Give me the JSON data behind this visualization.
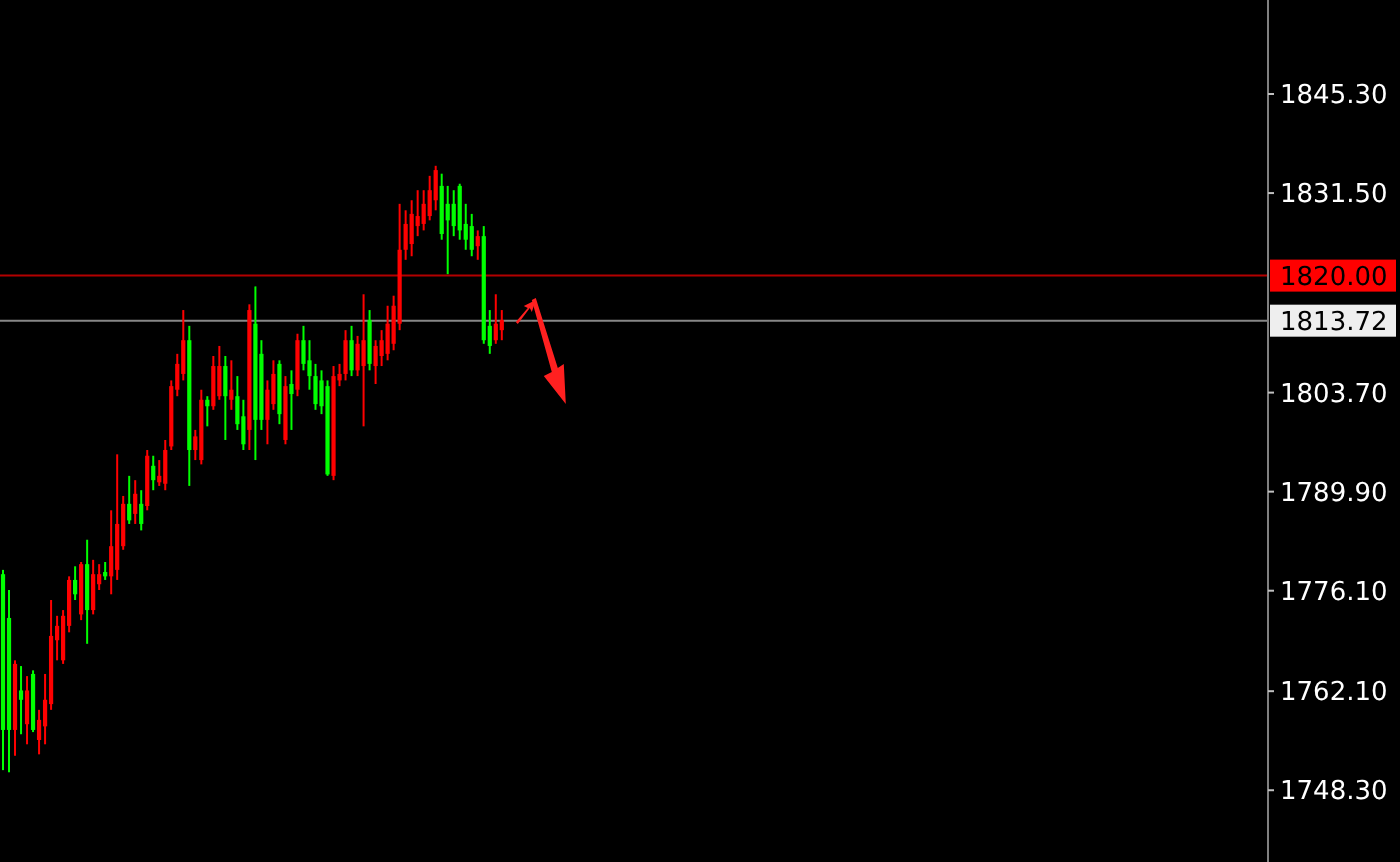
{
  "chart_data": {
    "type": "candlestick",
    "categories": [
      null,
      null,
      null,
      null,
      null,
      null,
      null,
      null,
      null,
      null,
      null,
      null,
      null,
      null,
      null,
      null,
      null,
      null,
      null,
      null,
      null,
      null,
      null,
      null,
      null,
      null,
      null,
      null,
      null,
      null,
      null,
      null,
      null,
      null,
      null,
      null,
      null,
      null,
      null,
      null,
      null,
      null,
      null,
      null,
      null,
      null,
      null,
      null,
      null,
      null,
      null,
      null,
      null,
      null,
      null,
      null,
      null,
      null,
      null,
      null,
      null,
      null,
      null,
      null,
      null,
      null,
      null,
      null,
      null,
      null,
      null,
      null,
      null,
      null,
      null,
      null,
      null,
      null,
      null,
      null,
      null,
      null,
      null,
      null,
      null,
      null,
      null,
      null,
      null,
      null,
      null,
      null,
      null,
      null,
      null,
      null,
      null,
      null,
      null,
      null,
      null,
      null,
      null,
      null,
      null,
      null,
      null,
      null,
      null,
      null,
      null,
      null,
      null,
      null,
      null,
      null,
      null,
      null,
      null,
      null,
      null,
      null,
      null,
      null,
      null,
      null,
      null,
      null,
      null,
      null,
      null,
      null,
      null,
      null,
      null,
      null,
      null,
      null,
      null,
      null,
      null,
      null,
      null,
      null,
      null,
      null,
      null,
      null,
      null,
      null,
      null,
      null,
      null,
      null,
      null,
      null,
      null,
      null,
      null,
      null,
      null,
      null,
      null,
      null,
      null,
      null,
      null,
      null,
      null,
      null,
      null,
      null,
      null,
      null,
      null,
      null,
      null,
      null,
      null,
      null,
      null,
      null,
      null,
      null,
      null,
      null,
      null,
      null,
      null,
      null,
      null,
      null,
      null,
      null,
      null,
      null,
      null,
      null,
      null,
      null,
      null,
      null,
      null,
      null,
      null,
      null,
      null,
      null,
      null,
      null,
      null
    ],
    "ohlc": [
      [
        1778.4,
        1779.0,
        1751.1,
        1756.7
      ],
      [
        1772.3,
        1776.2,
        1750.8,
        1756.7
      ],
      [
        1756.7,
        1766.4,
        1753.1,
        1765.9
      ],
      [
        1762.2,
        1765.6,
        1756.1,
        1760.9
      ],
      [
        1757.5,
        1764.2,
        1754.7,
        1762.2
      ],
      [
        1764.5,
        1765.0,
        1756.4,
        1756.7
      ],
      [
        1755.3,
        1759.5,
        1753.3,
        1758.1
      ],
      [
        1757.2,
        1764.5,
        1754.7,
        1760.9
      ],
      [
        1760.3,
        1774.8,
        1759.5,
        1769.8
      ],
      [
        1769.2,
        1772.6,
        1766.4,
        1771.2
      ],
      [
        1766.4,
        1773.4,
        1765.9,
        1772.6
      ],
      [
        1771.2,
        1778.1,
        1770.3,
        1777.6
      ],
      [
        1777.6,
        1779.5,
        1774.8,
        1775.6
      ],
      [
        1772.8,
        1780.1,
        1772.0,
        1779.8
      ],
      [
        1779.8,
        1783.2,
        1768.7,
        1773.4
      ],
      [
        1773.4,
        1780.4,
        1772.8,
        1778.4
      ],
      [
        1777.0,
        1779.8,
        1776.2,
        1778.4
      ],
      [
        1778.7,
        1780.1,
        1777.6,
        1778.1
      ],
      [
        1778.1,
        1787.3,
        1775.6,
        1782.3
      ],
      [
        1779.0,
        1795.1,
        1777.6,
        1785.4
      ],
      [
        1782.3,
        1789.3,
        1781.8,
        1788.2
      ],
      [
        1788.2,
        1792.1,
        1785.4,
        1785.9
      ],
      [
        1786.8,
        1791.5,
        1785.4,
        1789.6
      ],
      [
        1788.2,
        1790.1,
        1784.5,
        1785.4
      ],
      [
        1787.9,
        1795.7,
        1787.3,
        1794.9
      ],
      [
        1793.5,
        1794.9,
        1790.1,
        1791.5
      ],
      [
        1791.2,
        1794.3,
        1790.7,
        1792.1
      ],
      [
        1791.0,
        1797.1,
        1790.1,
        1795.7
      ],
      [
        1796.2,
        1805.4,
        1795.7,
        1804.6
      ],
      [
        1804.1,
        1809.1,
        1803.2,
        1807.7
      ],
      [
        1806.3,
        1815.2,
        1805.4,
        1811.0
      ],
      [
        1811.0,
        1813.0,
        1790.7,
        1795.7
      ],
      [
        1795.7,
        1798.5,
        1794.3,
        1797.6
      ],
      [
        1794.3,
        1804.1,
        1793.7,
        1802.7
      ],
      [
        1802.7,
        1803.2,
        1799.0,
        1801.8
      ],
      [
        1801.8,
        1808.8,
        1801.3,
        1807.4
      ],
      [
        1803.2,
        1810.2,
        1802.7,
        1807.4
      ],
      [
        1807.4,
        1808.8,
        1797.1,
        1803.2
      ],
      [
        1802.7,
        1808.2,
        1801.3,
        1804.1
      ],
      [
        1803.2,
        1806.0,
        1798.5,
        1799.3
      ],
      [
        1800.4,
        1802.7,
        1795.7,
        1796.5
      ],
      [
        1798.5,
        1816.0,
        1795.7,
        1815.2
      ],
      [
        1813.3,
        1818.5,
        1794.3,
        1799.9
      ],
      [
        1809.1,
        1811.0,
        1798.5,
        1799.9
      ],
      [
        1799.9,
        1805.4,
        1796.5,
        1804.1
      ],
      [
        1802.1,
        1808.2,
        1801.3,
        1806.3
      ],
      [
        1807.7,
        1808.2,
        1799.3,
        1800.7
      ],
      [
        1797.1,
        1806.0,
        1796.5,
        1804.6
      ],
      [
        1804.9,
        1806.8,
        1798.5,
        1803.5
      ],
      [
        1804.1,
        1811.9,
        1803.2,
        1811.0
      ],
      [
        1811.0,
        1813.0,
        1806.8,
        1807.7
      ],
      [
        1808.2,
        1811.0,
        1804.1,
        1806.0
      ],
      [
        1806.0,
        1807.7,
        1801.3,
        1802.1
      ],
      [
        1805.4,
        1806.8,
        1800.7,
        1801.8
      ],
      [
        1804.6,
        1805.4,
        1792.1,
        1792.3
      ],
      [
        1792.1,
        1807.4,
        1791.5,
        1806.0
      ],
      [
        1805.4,
        1807.7,
        1804.6,
        1806.3
      ],
      [
        1806.3,
        1812.4,
        1805.4,
        1811.0
      ],
      [
        1811.0,
        1813.0,
        1806.0,
        1806.8
      ],
      [
        1806.8,
        1811.6,
        1806.0,
        1810.5
      ],
      [
        1807.4,
        1817.4,
        1799.0,
        1811.0
      ],
      [
        1813.8,
        1815.2,
        1806.8,
        1807.7
      ],
      [
        1807.4,
        1811.0,
        1804.9,
        1810.2
      ],
      [
        1808.8,
        1812.4,
        1807.4,
        1811.0
      ],
      [
        1809.1,
        1815.8,
        1808.2,
        1813.3
      ],
      [
        1810.5,
        1817.2,
        1809.6,
        1815.8
      ],
      [
        1813.3,
        1830.0,
        1812.4,
        1823.6
      ],
      [
        1823.6,
        1829.1,
        1822.2,
        1827.2
      ],
      [
        1824.4,
        1830.5,
        1822.7,
        1828.6
      ],
      [
        1826.9,
        1831.9,
        1825.5,
        1828.3
      ],
      [
        1827.2,
        1831.9,
        1826.3,
        1830.0
      ],
      [
        1828.3,
        1833.9,
        1827.7,
        1831.9
      ],
      [
        1830.5,
        1835.3,
        1829.1,
        1834.7
      ],
      [
        1832.5,
        1834.2,
        1825.0,
        1825.8
      ],
      [
        1830.0,
        1832.5,
        1820.2,
        1827.7
      ],
      [
        1830.0,
        1831.9,
        1825.5,
        1826.9
      ],
      [
        1832.5,
        1832.8,
        1825.0,
        1826.3
      ],
      [
        1827.2,
        1830.0,
        1823.6,
        1825.0
      ],
      [
        1826.9,
        1828.6,
        1822.7,
        1823.6
      ],
      [
        1824.1,
        1826.3,
        1822.2,
        1825.5
      ],
      [
        1825.5,
        1826.9,
        1810.5,
        1811.0
      ],
      [
        1813.0,
        1815.2,
        1809.1,
        1810.2
      ],
      [
        1811.0,
        1817.4,
        1810.5,
        1813.3
      ],
      [
        1812.4,
        1815.2,
        1811.0,
        1813.8
      ],
      null,
      null,
      null,
      null,
      null,
      null,
      null,
      null,
      null,
      null,
      null,
      null,
      null,
      null,
      null,
      null,
      null,
      null,
      null,
      null,
      null,
      null,
      null,
      null,
      null,
      null,
      null,
      null,
      null,
      null,
      null,
      null,
      null,
      null,
      null,
      null,
      null,
      null,
      null,
      null,
      null,
      null,
      null,
      null,
      null,
      null,
      null,
      null,
      null,
      null,
      null,
      null,
      null,
      null,
      null,
      null,
      null,
      null,
      null,
      null,
      null,
      null,
      null,
      null,
      null,
      null,
      null,
      null,
      null,
      null,
      null,
      null,
      null,
      null,
      null,
      null,
      null,
      null,
      null,
      null,
      null,
      null,
      null,
      null,
      null,
      null,
      null,
      null,
      null,
      null,
      null,
      null,
      null,
      null,
      null,
      null,
      null,
      null,
      null,
      null,
      null,
      null,
      null,
      null,
      null,
      null,
      null,
      null,
      null,
      null,
      null,
      null,
      null,
      null,
      null,
      null,
      null,
      null,
      null,
      null,
      null,
      null,
      null,
      null,
      null,
      null,
      null
    ],
    "colors": [
      "#00ff00",
      "#00ff00",
      "#ff0000",
      "#00ff00",
      "#ff0000",
      "#00ff00",
      "#ff0000",
      "#ff0000",
      "#ff0000",
      "#ff0000",
      "#ff0000",
      "#ff0000",
      "#00ff00",
      "#ff0000",
      "#00ff00",
      "#ff0000",
      "#ff0000",
      "#00ff00",
      "#ff0000",
      "#ff0000",
      "#ff0000",
      "#00ff00",
      "#ff0000",
      "#00ff00",
      "#ff0000",
      "#00ff00",
      "#ff0000",
      "#ff0000",
      "#ff0000",
      "#ff0000",
      "#ff0000",
      "#00ff00",
      "#ff0000",
      "#ff0000",
      "#00ff00",
      "#ff0000",
      "#ff0000",
      "#00ff00",
      "#ff0000",
      "#00ff00",
      "#00ff00",
      "#ff0000",
      "#00ff00",
      "#00ff00",
      "#ff0000",
      "#ff0000",
      "#00ff00",
      "#ff0000",
      "#00ff00",
      "#ff0000",
      "#00ff00",
      "#00ff00",
      "#00ff00",
      "#00ff00",
      "#00ff00",
      "#ff0000",
      "#ff0000",
      "#ff0000",
      "#00ff00",
      "#ff0000",
      "#ff0000",
      "#00ff00",
      "#ff0000",
      "#ff0000",
      "#ff0000",
      "#ff0000",
      "#ff0000",
      "#ff0000",
      "#ff0000",
      "#ff0000",
      "#ff0000",
      "#ff0000",
      "#ff0000",
      "#00ff00",
      "#00ff00",
      "#00ff00",
      "#00ff00",
      "#00ff00",
      "#00ff00",
      "#ff0000",
      "#00ff00",
      "#00ff00",
      "#ff0000",
      "#ff0000",
      null,
      null,
      null,
      null,
      null,
      null,
      null,
      null,
      null,
      null,
      null,
      null,
      null,
      null,
      null,
      null,
      null,
      null,
      null,
      null,
      null,
      null,
      null,
      null,
      null,
      null,
      null,
      null,
      null,
      null,
      null,
      null,
      null,
      null,
      null,
      null,
      null,
      null,
      null,
      null,
      null,
      null,
      null,
      null,
      null,
      null,
      null,
      null,
      null,
      null,
      null,
      null,
      null,
      null,
      null,
      null,
      null,
      null,
      null,
      null,
      null,
      null,
      null,
      null,
      null,
      null,
      null,
      null,
      null,
      null,
      null,
      null,
      null,
      null,
      null,
      null,
      null,
      null,
      null,
      null,
      null,
      null,
      null,
      null,
      null,
      null,
      null,
      null,
      null,
      null,
      null,
      null,
      null,
      null,
      null,
      null,
      null,
      null,
      null,
      null,
      null,
      null,
      null,
      null,
      null,
      null,
      null,
      null,
      null,
      null,
      null,
      null,
      null,
      null,
      null,
      null,
      null,
      null,
      null,
      null,
      null,
      null,
      null,
      null,
      null,
      null,
      null
    ],
    "ylim": [
      1738.3,
      1858.4
    ],
    "yticks": [
      {
        "value": 1845.3,
        "label": "1845.30"
      },
      {
        "value": 1831.5,
        "label": "1831.50"
      },
      {
        "value": 1803.7,
        "label": "1803.70"
      },
      {
        "value": 1789.9,
        "label": "1789.90"
      },
      {
        "value": 1776.1,
        "label": "1776.10"
      },
      {
        "value": 1762.1,
        "label": "1762.10"
      },
      {
        "value": 1748.3,
        "label": "1748.30"
      }
    ],
    "tick_labels": "y",
    "ref_lines": [
      {
        "axis": "y",
        "value": 1820.0,
        "label": "1820.00",
        "color": "#ff0000"
      },
      {
        "axis": "y",
        "value": 1813.72,
        "label": "1813.72",
        "color": "#c0c0c0"
      }
    ]
  }
}
